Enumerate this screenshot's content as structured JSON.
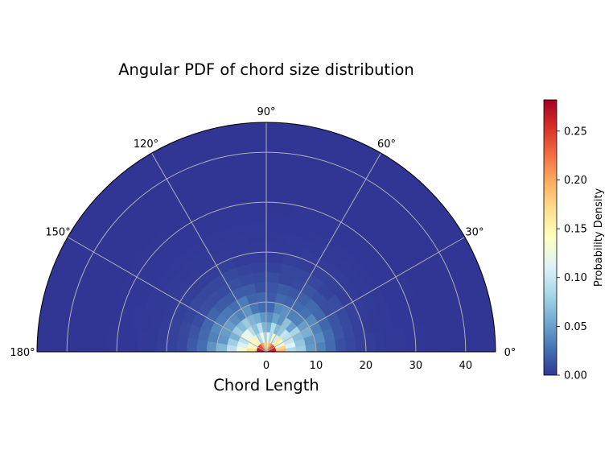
{
  "chart_data": {
    "type": "heatmap",
    "projection": "polar-half",
    "title": "Angular PDF of chord size distribution",
    "xlabel": "Chord Length",
    "radial_ticks": [
      "0",
      "10",
      "20",
      "30",
      "40"
    ],
    "radial_tick_values": [
      0,
      10,
      20,
      30,
      40
    ],
    "rlim": [
      0,
      46
    ],
    "angle_ticks": [
      "0°",
      "30°",
      "60°",
      "90°",
      "120°",
      "150°",
      "180°"
    ],
    "angle_tick_values": [
      0,
      30,
      60,
      90,
      120,
      150,
      180
    ],
    "grid": true,
    "colormap": "RdYlBu_r",
    "colorbar": {
      "label": "Probability Density",
      "range": [
        0,
        0.282
      ],
      "ticks": [
        "0.00",
        "0.05",
        "0.10",
        "0.15",
        "0.20",
        "0.25"
      ],
      "tick_values": [
        0,
        0.05,
        0.1,
        0.15,
        0.2,
        0.25
      ],
      "placement": "right"
    },
    "radial_bin_width": 2,
    "angle_bin_width": 10,
    "density_profile": {
      "r_center": [
        1,
        3,
        5,
        7,
        9,
        11,
        13,
        15,
        17,
        19,
        21
      ],
      "density": [
        0.27,
        0.16,
        0.11,
        0.075,
        0.05,
        0.035,
        0.022,
        0.014,
        0.009,
        0.005,
        0.003
      ]
    }
  }
}
